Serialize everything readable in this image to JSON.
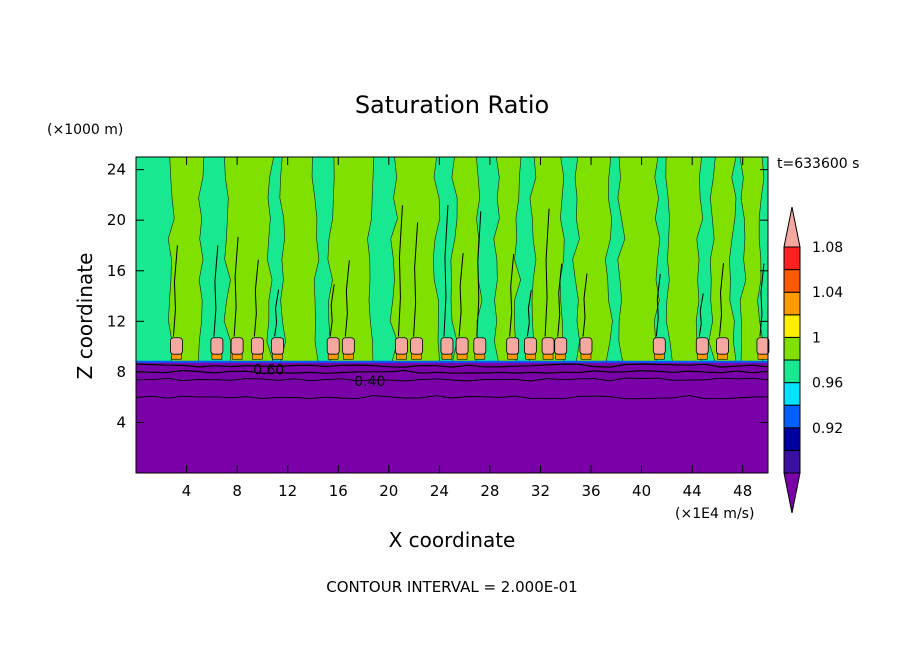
{
  "chart_data": {
    "type": "heatmap",
    "title": "Saturation Ratio",
    "xlabel": "X coordinate",
    "ylabel": "Z coordinate",
    "x_unit_label": "(×1E4 m/s)",
    "y_unit_label": "(×1000 m)",
    "time_label": "t=633600 s",
    "footer": "CONTOUR INTERVAL = 2.000E-01",
    "xlim": [
      0,
      50
    ],
    "ylim": [
      0,
      25
    ],
    "x_ticks": [
      "4",
      "8",
      "12",
      "16",
      "20",
      "24",
      "28",
      "32",
      "36",
      "40",
      "44",
      "48"
    ],
    "y_ticks": [
      "4",
      "8",
      "12",
      "16",
      "20",
      "24"
    ],
    "colorbar": {
      "labels": [
        "0.92",
        "0.96",
        "1",
        "1.04",
        "1.08"
      ],
      "levels": [
        0.92,
        0.96,
        1.0,
        1.04,
        1.08
      ],
      "colors": [
        "#7a00a8",
        "#3a10a0",
        "#0000a0",
        "#0060ff",
        "#00e0ff",
        "#18e890",
        "#80e000",
        "#ffee00",
        "#ff9a00",
        "#ff5a00",
        "#ff2020",
        "#f4a8a0"
      ]
    },
    "contour_labels": [
      "0.60",
      "0.40"
    ],
    "boundary_z": 8.8,
    "regions": [
      {
        "name": "dry-lower-layer",
        "z_range": [
          0,
          8.8
        ],
        "color": "#7a00a8"
      },
      {
        "name": "upper-layer",
        "z_range": [
          8.8,
          25
        ],
        "base_color": "#18e890"
      }
    ],
    "supersaturated_columns_x": [
      3.2,
      6.4,
      8,
      9.6,
      11.2,
      15.6,
      16.8,
      21,
      22.2,
      24.6,
      25.8,
      27.2,
      29.8,
      31.2,
      32.6,
      33.6,
      35.6,
      41.4,
      44.8,
      46.4,
      49.6
    ]
  }
}
